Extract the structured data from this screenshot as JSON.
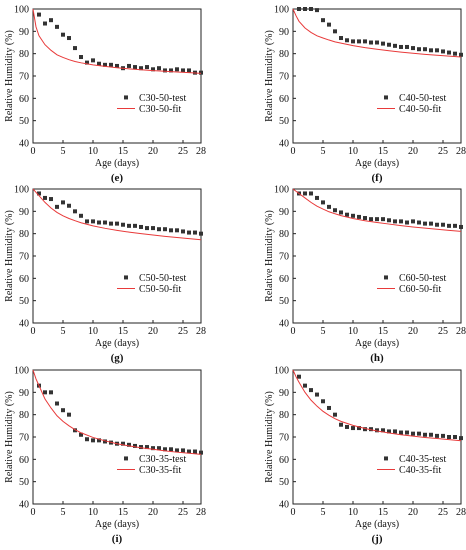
{
  "chart_data": [
    {
      "type": "scatter",
      "panel_label": "(e)",
      "xlabel": "Age (days)",
      "ylabel": "Relative Humidity (%)",
      "xlim": [
        0,
        28
      ],
      "ylim": [
        40,
        100
      ],
      "xticks": [
        0,
        5,
        10,
        15,
        20,
        25,
        28
      ],
      "yticks": [
        40,
        50,
        60,
        70,
        80,
        90,
        100
      ],
      "legend_position": "right",
      "series": [
        {
          "name": "C30-50-test",
          "kind": "markers",
          "color": "#333333",
          "x": [
            1,
            2,
            3,
            4,
            5,
            6,
            7,
            8,
            9,
            10,
            11,
            12,
            13,
            14,
            15,
            16,
            17,
            18,
            19,
            20,
            21,
            22,
            23,
            24,
            25,
            26,
            27,
            28
          ],
          "y": [
            97.5,
            93.5,
            95,
            92,
            88.5,
            87,
            82.5,
            78.5,
            76,
            77,
            75.5,
            75,
            75,
            74.5,
            73.5,
            74.5,
            74,
            73.5,
            74,
            73,
            73.5,
            72.5,
            72.5,
            73,
            72.5,
            72.5,
            71.5,
            71.5
          ]
        },
        {
          "name": "C30-50-fit",
          "kind": "line",
          "color": "#e83a3a",
          "x": [
            0,
            0.5,
            1,
            2,
            3,
            4,
            5,
            6,
            7,
            8,
            10,
            12,
            14,
            16,
            18,
            20,
            22,
            24,
            26,
            28
          ],
          "y": [
            100,
            92,
            88,
            84,
            81.5,
            79.5,
            78.3,
            77.3,
            76.5,
            75.9,
            75,
            74.3,
            73.7,
            73.2,
            72.8,
            72.4,
            72.1,
            71.8,
            71.5,
            71.2
          ]
        }
      ]
    },
    {
      "type": "scatter",
      "panel_label": "(f)",
      "xlabel": "Age (days)",
      "ylabel": "Relative Humidity (%)",
      "xlim": [
        0,
        28
      ],
      "ylim": [
        40,
        100
      ],
      "xticks": [
        0,
        5,
        10,
        15,
        20,
        25,
        28
      ],
      "yticks": [
        40,
        50,
        60,
        70,
        80,
        90,
        100
      ],
      "legend_position": "right",
      "series": [
        {
          "name": "C40-50-test",
          "kind": "markers",
          "color": "#333333",
          "x": [
            1,
            2,
            3,
            4,
            5,
            6,
            7,
            8,
            9,
            10,
            11,
            12,
            13,
            14,
            15,
            16,
            17,
            18,
            19,
            20,
            21,
            22,
            23,
            24,
            25,
            26,
            27,
            28
          ],
          "y": [
            100,
            100,
            100,
            99.5,
            95,
            93,
            90,
            87,
            86,
            85.5,
            85.5,
            85.5,
            85,
            85,
            84.5,
            84,
            83.5,
            83,
            83,
            82.5,
            82,
            82,
            81.5,
            81.5,
            81,
            80.5,
            80,
            79.5
          ]
        },
        {
          "name": "C40-50-fit",
          "kind": "line",
          "color": "#e83a3a",
          "x": [
            0,
            0.5,
            1,
            2,
            3,
            4,
            5,
            6,
            7,
            8,
            10,
            12,
            14,
            16,
            18,
            20,
            22,
            24,
            26,
            28
          ],
          "y": [
            100,
            97,
            94.5,
            91.5,
            89.5,
            88,
            87,
            86.1,
            85.3,
            84.7,
            83.6,
            82.7,
            82,
            81.3,
            80.7,
            80.2,
            79.7,
            79.3,
            78.9,
            78.5
          ]
        }
      ]
    },
    {
      "type": "scatter",
      "panel_label": "(g)",
      "xlabel": "Age (days)",
      "ylabel": "Relative Humidity (%)",
      "xlim": [
        0,
        28
      ],
      "ylim": [
        40,
        100
      ],
      "xticks": [
        0,
        5,
        10,
        15,
        20,
        25,
        28
      ],
      "yticks": [
        40,
        50,
        60,
        70,
        80,
        90,
        100
      ],
      "legend_position": "right",
      "series": [
        {
          "name": "C50-50-test",
          "kind": "markers",
          "color": "#333333",
          "x": [
            1,
            2,
            3,
            4,
            5,
            6,
            7,
            8,
            9,
            10,
            11,
            12,
            13,
            14,
            15,
            16,
            17,
            18,
            19,
            20,
            21,
            22,
            23,
            24,
            25,
            26,
            27,
            28
          ],
          "y": [
            98,
            96,
            95.5,
            92,
            94,
            92.5,
            90,
            88,
            85.5,
            85.5,
            85,
            85,
            84.5,
            84.5,
            84,
            83.5,
            83.5,
            83,
            82.5,
            82.5,
            82,
            82,
            81.5,
            81.5,
            81,
            80.5,
            80.5,
            80
          ]
        },
        {
          "name": "C50-50-fit",
          "kind": "line",
          "color": "#e83a3a",
          "x": [
            0,
            0.5,
            1,
            2,
            3,
            4,
            5,
            6,
            7,
            8,
            10,
            12,
            14,
            16,
            18,
            20,
            22,
            24,
            26,
            28
          ],
          "y": [
            100,
            98.5,
            97,
            94,
            91.5,
            89.5,
            88,
            86.8,
            85.8,
            84.9,
            83.5,
            82.4,
            81.5,
            80.7,
            80,
            79.4,
            78.8,
            78.3,
            77.8,
            77.3
          ]
        }
      ]
    },
    {
      "type": "scatter",
      "panel_label": "(h)",
      "xlabel": "Age (days)",
      "ylabel": "Relative Humidity (%)",
      "xlim": [
        0,
        28
      ],
      "ylim": [
        40,
        100
      ],
      "xticks": [
        0,
        5,
        10,
        15,
        20,
        25,
        28
      ],
      "yticks": [
        40,
        50,
        60,
        70,
        80,
        90,
        100
      ],
      "legend_position": "right",
      "series": [
        {
          "name": "C60-50-test",
          "kind": "markers",
          "color": "#333333",
          "x": [
            1,
            2,
            3,
            4,
            5,
            6,
            7,
            8,
            9,
            10,
            11,
            12,
            13,
            14,
            15,
            16,
            17,
            18,
            19,
            20,
            21,
            22,
            23,
            24,
            25,
            26,
            27,
            28
          ],
          "y": [
            98,
            98,
            98,
            96,
            94,
            92,
            90.5,
            89.5,
            88.5,
            88,
            87.5,
            87,
            86.5,
            86.5,
            86.5,
            86,
            85.5,
            85.5,
            85,
            85.5,
            85,
            84.5,
            84.5,
            84,
            84,
            83.5,
            83.5,
            83
          ]
        },
        {
          "name": "C60-50-fit",
          "kind": "line",
          "color": "#e83a3a",
          "x": [
            0,
            0.5,
            1,
            2,
            3,
            4,
            5,
            6,
            7,
            8,
            10,
            12,
            14,
            16,
            18,
            20,
            22,
            24,
            26,
            28
          ],
          "y": [
            100,
            99,
            98,
            96,
            94,
            92.3,
            91,
            89.8,
            88.9,
            88.1,
            86.8,
            85.8,
            85,
            84.3,
            83.6,
            83,
            82.5,
            82,
            81.5,
            81
          ]
        }
      ]
    },
    {
      "type": "scatter",
      "panel_label": "(i)",
      "xlabel": "Age (days)",
      "ylabel": "Relative Humidity (%)",
      "xlim": [
        0,
        28
      ],
      "ylim": [
        40,
        100
      ],
      "xticks": [
        0,
        5,
        10,
        15,
        20,
        25,
        28
      ],
      "yticks": [
        40,
        50,
        60,
        70,
        80,
        90,
        100
      ],
      "legend_position": "right",
      "series": [
        {
          "name": "C30-35-test",
          "kind": "markers",
          "color": "#333333",
          "x": [
            1,
            2,
            3,
            4,
            5,
            6,
            7,
            8,
            9,
            10,
            11,
            12,
            13,
            14,
            15,
            16,
            17,
            18,
            19,
            20,
            21,
            22,
            23,
            24,
            25,
            26,
            27,
            28
          ],
          "y": [
            93,
            90,
            90,
            85,
            82,
            80,
            73,
            71,
            69,
            68.5,
            68.5,
            68,
            67.5,
            67,
            67,
            66.5,
            66,
            65.5,
            65.5,
            65,
            65,
            64.5,
            64.5,
            64,
            64,
            63.5,
            63.5,
            63
          ]
        },
        {
          "name": "C30-35-fit",
          "kind": "line",
          "color": "#e83a3a",
          "x": [
            0,
            0.5,
            1,
            2,
            3,
            4,
            5,
            6,
            7,
            8,
            10,
            12,
            14,
            16,
            18,
            20,
            22,
            24,
            26,
            28
          ],
          "y": [
            100,
            96,
            93,
            87,
            83,
            79.5,
            77,
            75,
            73.3,
            71.9,
            69.8,
            68.3,
            67,
            66,
            65.2,
            64.5,
            63.8,
            63.2,
            62.7,
            62.2
          ]
        }
      ]
    },
    {
      "type": "scatter",
      "panel_label": "(j)",
      "xlabel": "Age (days)",
      "ylabel": "Relative Humidity (%)",
      "xlim": [
        0,
        28
      ],
      "ylim": [
        40,
        100
      ],
      "xticks": [
        0,
        5,
        10,
        15,
        20,
        25,
        28
      ],
      "yticks": [
        40,
        50,
        60,
        70,
        80,
        90,
        100
      ],
      "legend_position": "right",
      "series": [
        {
          "name": "C40-35-test",
          "kind": "markers",
          "color": "#333333",
          "x": [
            1,
            2,
            3,
            4,
            5,
            6,
            7,
            8,
            9,
            10,
            11,
            12,
            13,
            14,
            15,
            16,
            17,
            18,
            19,
            20,
            21,
            22,
            23,
            24,
            25,
            26,
            27,
            28
          ],
          "y": [
            97,
            93,
            91,
            89,
            86,
            83,
            80,
            75.5,
            74.5,
            74,
            74,
            73.5,
            73.5,
            73,
            73,
            72.5,
            72.5,
            72,
            72,
            71.5,
            71.5,
            71,
            71,
            70.5,
            70.5,
            70,
            70,
            69.5
          ]
        },
        {
          "name": "C40-35-fit",
          "kind": "line",
          "color": "#e83a3a",
          "x": [
            0,
            0.5,
            1,
            2,
            3,
            4,
            5,
            6,
            7,
            8,
            10,
            12,
            14,
            16,
            18,
            20,
            22,
            24,
            26,
            28
          ],
          "y": [
            100,
            97,
            94.5,
            90,
            86.5,
            83.8,
            81.5,
            79.7,
            78.2,
            77,
            75.2,
            73.8,
            72.7,
            71.8,
            71,
            70.4,
            69.8,
            69.3,
            68.8,
            68.3
          ]
        }
      ]
    }
  ]
}
